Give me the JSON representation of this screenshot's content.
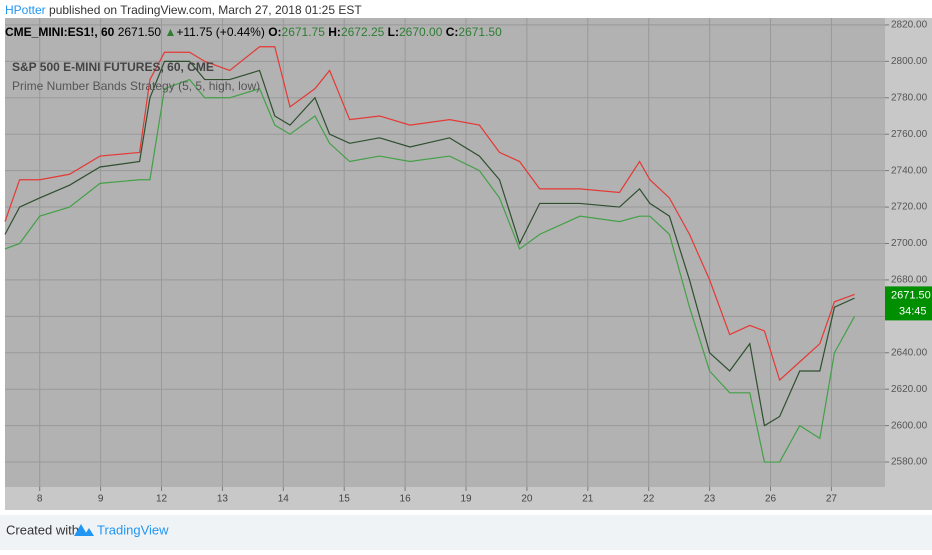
{
  "header": {
    "author": "HPotter",
    "published": "published on TradingView.com, March 27, 2018 01:25 EST",
    "symbol": "CME_MINI:ES1!, 60",
    "price": "2671.50",
    "arrow": "▲",
    "change": "+11.75 (+0.44%)",
    "o_label": "O:",
    "o": "2671.75",
    "h_label": "H:",
    "h": "2672.25",
    "l_label": "L:",
    "l": "2670.00",
    "c_label": "C:",
    "c": "2671.50"
  },
  "footer": {
    "created": "Created with",
    "brand": "TradingView"
  },
  "chart_data": {
    "type": "line",
    "title": "S&P 500 E-MINI FUTURES, 60, CME",
    "subtitle": "Prime Number Bands Strategy (5, 5, high, low)",
    "x": [
      -0.57,
      -0.33,
      0,
      0.49,
      0.99,
      1.64,
      1.81,
      2.05,
      2.46,
      2.71,
      3.12,
      3.61,
      3.86,
      4.11,
      4.52,
      4.76,
      5.09,
      5.58,
      6.08,
      6.73,
      7.22,
      7.55,
      7.88,
      8.21,
      8.87,
      9.52,
      9.85,
      10.02,
      10.34,
      10.67,
      11.0,
      11.33,
      11.66,
      11.9,
      12.15,
      12.48,
      12.81,
      13.05,
      13.38
    ],
    "series": [
      {
        "color": "#e53935",
        "values": [
          2712,
          2735,
          2735,
          2738,
          2748,
          2750,
          2790,
          2805,
          2805,
          2800,
          2795,
          2808,
          2808,
          2775,
          2785,
          2795,
          2768,
          2770,
          2765,
          2768,
          2765,
          2750,
          2745,
          2730,
          2730,
          2728,
          2745,
          2735,
          2725,
          2705,
          2680,
          2650,
          2655,
          2652,
          2625,
          2635,
          2645,
          2668,
          2672
        ]
      },
      {
        "color": "#43a047",
        "values": [
          2697,
          2700,
          2715,
          2720,
          2733,
          2735,
          2735,
          2785,
          2790,
          2780,
          2780,
          2785,
          2765,
          2760,
          2770,
          2755,
          2745,
          2748,
          2745,
          2748,
          2740,
          2725,
          2697,
          2705,
          2715,
          2712,
          2715,
          2715,
          2705,
          2665,
          2630,
          2618,
          2618,
          2580,
          2580,
          2600,
          2593,
          2640,
          2660
        ]
      },
      {
        "color": "#2f4f2f",
        "values": [
          2705,
          2720,
          2725,
          2732,
          2742,
          2745,
          2780,
          2800,
          2800,
          2790,
          2790,
          2795,
          2770,
          2765,
          2780,
          2760,
          2755,
          2758,
          2753,
          2758,
          2748,
          2735,
          2700,
          2722,
          2722,
          2720,
          2730,
          2722,
          2715,
          2680,
          2640,
          2630,
          2645,
          2600,
          2605,
          2630,
          2630,
          2665,
          2670
        ]
      }
    ],
    "xlim": [
      -0.57,
      13.88
    ],
    "xticks": [
      {
        "value": 0,
        "label": "8"
      },
      {
        "value": 1,
        "label": "9"
      },
      {
        "value": 2,
        "label": "12"
      },
      {
        "value": 3,
        "label": "13"
      },
      {
        "value": 4,
        "label": "14"
      },
      {
        "value": 5,
        "label": "15"
      },
      {
        "value": 6,
        "label": "16"
      },
      {
        "value": 7,
        "label": "19"
      },
      {
        "value": 8,
        "label": "20"
      },
      {
        "value": 9,
        "label": "21"
      },
      {
        "value": 10,
        "label": "22"
      },
      {
        "value": 11,
        "label": "23"
      },
      {
        "value": 12,
        "label": "26"
      },
      {
        "value": 13,
        "label": "27"
      }
    ],
    "ylim": [
      2566.3,
      2823.8
    ],
    "yticks": [
      {
        "value": 2580,
        "label": "2580.00"
      },
      {
        "value": 2600,
        "label": "2600.00"
      },
      {
        "value": 2620,
        "label": "2620.00"
      },
      {
        "value": 2640,
        "label": "2640.00"
      },
      {
        "value": 2660,
        "label": "2660.00"
      },
      {
        "value": 2680,
        "label": "2680.00"
      },
      {
        "value": 2700,
        "label": "2700.00"
      },
      {
        "value": 2720,
        "label": "2720.00"
      },
      {
        "value": 2740,
        "label": "2740.00"
      },
      {
        "value": 2760,
        "label": "2760.00"
      },
      {
        "value": 2780,
        "label": "2780.00"
      },
      {
        "value": 2800,
        "label": "2800.00"
      },
      {
        "value": 2820,
        "label": "2820.00"
      }
    ],
    "grid": true,
    "last_price": {
      "value": 2671.5,
      "label": "2671.50"
    },
    "countdown": "34:45"
  }
}
